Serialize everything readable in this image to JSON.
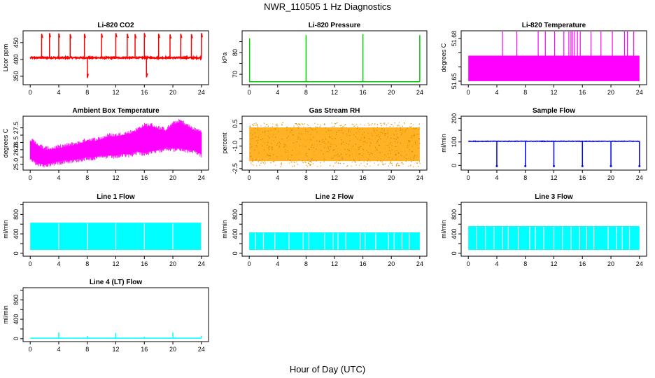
{
  "figure": {
    "title": "NWR_110505  1 Hz Diagnostics",
    "xlabel": "Hour of Day (UTC)"
  },
  "chart_data": [
    {
      "type": "line",
      "title": "Li-820 CO2",
      "ylabel": "Licor ppm",
      "color": "#ff0000",
      "xlim": [
        -1,
        25
      ],
      "ylim": [
        325,
        485
      ],
      "xticks": [
        0,
        4,
        8,
        12,
        16,
        20,
        24
      ],
      "yticks": [
        350,
        400,
        450
      ],
      "style": "spiky",
      "base": 405,
      "noise": 4,
      "spikes": [
        [
          1.6,
          476
        ],
        [
          2.7,
          478
        ],
        [
          4.0,
          477
        ],
        [
          5.6,
          475
        ],
        [
          7.6,
          476
        ],
        [
          8.0,
          345
        ],
        [
          10.0,
          477
        ],
        [
          12.0,
          478
        ],
        [
          13.6,
          476
        ],
        [
          14.7,
          475
        ],
        [
          16.0,
          478
        ],
        [
          16.3,
          347
        ],
        [
          18.0,
          476
        ],
        [
          19.6,
          474
        ],
        [
          21.1,
          476
        ],
        [
          22.6,
          475
        ],
        [
          24.0,
          478
        ]
      ],
      "series": [
        {
          "x": [
            0,
            4,
            8,
            12,
            16,
            20,
            24
          ],
          "y": [
            405,
            404,
            406,
            405,
            405,
            406,
            404
          ]
        }
      ]
    },
    {
      "type": "line",
      "title": "Li-820 Pressure",
      "ylabel": "kPa",
      "color": "#00cc00",
      "xlim": [
        -1,
        25
      ],
      "ylim": [
        65.2,
        90
      ],
      "xticks": [
        0,
        4,
        8,
        12,
        16,
        20,
        24
      ],
      "yticks": [
        70,
        75,
        80,
        85
      ],
      "ytick_labels": [
        "70",
        "",
        "80",
        ""
      ],
      "style": "step-spikes",
      "base": 66.6,
      "spikes": [
        [
          0.05,
          86.5
        ],
        [
          8.0,
          88.0
        ],
        [
          16.0,
          88.5
        ],
        [
          24.0,
          88.0
        ]
      ],
      "series": [
        {
          "x": [
            0,
            8,
            16,
            24
          ],
          "y": [
            66.6,
            66.7,
            66.6,
            66.6
          ]
        }
      ]
    },
    {
      "type": "area",
      "title": "Li-820 Temperature",
      "ylabel": "degrees C",
      "color": "#ff00ff",
      "xlim": [
        -1,
        25
      ],
      "ylim": [
        51.6475,
        51.6855
      ],
      "xticks": [
        0,
        4,
        8,
        12,
        16,
        20,
        24
      ],
      "yticks": [
        51.65,
        51.66,
        51.67,
        51.68
      ],
      "ytick_labels": [
        "51.65",
        "",
        "",
        "51.68"
      ],
      "style": "band",
      "band": [
        51.65,
        51.668
      ],
      "band_x": [
        0,
        24
      ],
      "spikes": [
        [
          4.8,
          51.685
        ],
        [
          6.8,
          51.685
        ],
        [
          9.8,
          51.685
        ],
        [
          10.8,
          51.685
        ],
        [
          12.1,
          51.685
        ],
        [
          13.4,
          51.685
        ],
        [
          14.1,
          51.685
        ],
        [
          14.4,
          51.685
        ],
        [
          14.6,
          51.685
        ],
        [
          14.9,
          51.685
        ],
        [
          15.3,
          51.685
        ],
        [
          15.7,
          51.685
        ],
        [
          17.2,
          51.685
        ],
        [
          18.6,
          51.685
        ],
        [
          20.2,
          51.685
        ],
        [
          21.9,
          51.685
        ],
        [
          22.3,
          51.685
        ],
        [
          23.2,
          51.685
        ]
      ],
      "series": [
        {
          "x": [
            0,
            24
          ],
          "y": [
            51.668,
            51.668
          ]
        }
      ]
    },
    {
      "type": "area",
      "title": "Ambient Box Temperature",
      "ylabel": "degrees C",
      "color": "#ff00ff",
      "xlim": [
        -1,
        25
      ],
      "ylim": [
        24.6,
        28.3
      ],
      "xticks": [
        0,
        4,
        8,
        12,
        16,
        20,
        24
      ],
      "yticks": [
        25.0,
        25.5,
        26.0,
        26.5,
        27.0,
        27.5
      ],
      "ytick_labels": [
        "25.0",
        "",
        "26.0",
        "26.5",
        "",
        "27.5"
      ],
      "style": "envelope",
      "series": [
        {
          "name": "",
          "x": [
            0,
            1,
            2,
            3,
            4,
            5,
            6,
            7,
            8,
            9,
            10,
            11,
            12,
            13,
            14,
            15,
            16,
            17,
            18,
            19,
            20,
            21,
            22,
            23,
            24
          ],
          "y": [
            26.6,
            26.3,
            26.0,
            26.0,
            26.1,
            26.2,
            26.3,
            26.4,
            26.6,
            26.6,
            26.7,
            26.9,
            26.9,
            27.0,
            27.1,
            27.3,
            27.6,
            27.6,
            27.4,
            27.3,
            27.7,
            27.9,
            27.6,
            27.3,
            27.2
          ]
        },
        {
          "name": "",
          "x": [
            0,
            1,
            2,
            3,
            4,
            5,
            6,
            7,
            8,
            9,
            10,
            11,
            12,
            13,
            14,
            15,
            16,
            17,
            18,
            19,
            20,
            21,
            22,
            23,
            24
          ],
          "y": [
            25.4,
            25.1,
            25.0,
            25.1,
            25.2,
            25.3,
            25.3,
            25.4,
            25.5,
            25.5,
            25.6,
            25.6,
            25.6,
            25.7,
            25.7,
            25.9,
            25.8,
            25.9,
            26.0,
            26.2,
            26.1,
            26.1,
            26.0,
            26.0,
            25.7
          ]
        }
      ]
    },
    {
      "type": "scatter",
      "title": "Gas Stream RH",
      "ylabel": "percent",
      "color": "#ffa500",
      "color2": "#cc8800",
      "xlim": [
        -1,
        25
      ],
      "ylim": [
        -2.6,
        1.0
      ],
      "xticks": [
        0,
        4,
        8,
        12,
        16,
        20,
        24
      ],
      "yticks": [
        -2.5,
        -2.0,
        -1.5,
        -1.0,
        -0.5,
        0.0,
        0.5
      ],
      "ytick_labels": [
        "-2.5",
        "",
        "",
        "-1.0",
        "",
        "",
        "0.5"
      ],
      "style": "noise-band",
      "band": [
        -2.0,
        0.25
      ],
      "series": [
        {
          "x": [
            0,
            24
          ],
          "y": [
            -0.9,
            -0.9
          ]
        }
      ]
    },
    {
      "type": "line",
      "title": "Sample Flow",
      "ylabel": "ml/min",
      "color": "#0000ff",
      "xlim": [
        -1,
        25
      ],
      "ylim": [
        -20,
        210
      ],
      "xticks": [
        0,
        4,
        8,
        12,
        16,
        20,
        24
      ],
      "yticks": [
        0,
        50,
        100,
        150,
        200
      ],
      "ytick_labels": [
        "0",
        "",
        "100",
        "",
        "200"
      ],
      "style": "dips",
      "base": 103,
      "noise": 2,
      "dips": [
        [
          4.0,
          -3
        ],
        [
          8.0,
          -3
        ],
        [
          12.0,
          -3
        ],
        [
          16.0,
          -3
        ],
        [
          20.0,
          -3
        ],
        [
          24.0,
          -3
        ]
      ],
      "series": [
        {
          "x": [
            0,
            4,
            8,
            12,
            16,
            20,
            24
          ],
          "y": [
            103,
            103,
            102,
            103,
            103,
            102,
            103
          ]
        }
      ]
    },
    {
      "type": "area",
      "title": "Line 1 Flow",
      "ylabel": "ml/min",
      "color": "#00ffff",
      "xlim": [
        -1,
        25
      ],
      "ylim": [
        -60,
        1050
      ],
      "xticks": [
        0,
        4,
        8,
        12,
        16,
        20,
        24
      ],
      "yticks": [
        0,
        200,
        400,
        600,
        800,
        1000
      ],
      "ytick_labels": [
        "0",
        "",
        "400",
        "",
        "800",
        ""
      ],
      "style": "band",
      "band": [
        70,
        630
      ],
      "band_x": [
        0,
        24
      ],
      "gaps": [
        4.0,
        8.0,
        12.0,
        16.0,
        20.0,
        24.0
      ],
      "series": [
        {
          "x": [
            0,
            24
          ],
          "y": [
            630,
            630
          ]
        }
      ]
    },
    {
      "type": "area",
      "title": "Line 2 Flow",
      "ylabel": "ml/min",
      "color": "#00ffff",
      "xlim": [
        -1,
        25
      ],
      "ylim": [
        -60,
        1050
      ],
      "xticks": [
        0,
        4,
        8,
        12,
        16,
        20,
        24
      ],
      "yticks": [
        0,
        200,
        400,
        600,
        800,
        1000
      ],
      "ytick_labels": [
        "0",
        "",
        "400",
        "",
        "800",
        ""
      ],
      "style": "band",
      "band": [
        70,
        430
      ],
      "band_x": [
        0,
        24
      ],
      "gaps": [
        0.9,
        2.0,
        3.6,
        5.6,
        7.6,
        8.4,
        10.6,
        11.8,
        12.5,
        13.6,
        15.6,
        16.3,
        17.8,
        19.6,
        20.4,
        21.5,
        22.5
      ],
      "series": [
        {
          "x": [
            0,
            24
          ],
          "y": [
            430,
            430
          ]
        }
      ]
    },
    {
      "type": "area",
      "title": "Line 3 Flow",
      "ylabel": "ml/min",
      "color": "#00ffff",
      "xlim": [
        -1,
        25
      ],
      "ylim": [
        -60,
        1050
      ],
      "xticks": [
        0,
        4,
        8,
        12,
        16,
        20,
        24
      ],
      "yticks": [
        0,
        200,
        400,
        600,
        800,
        1000
      ],
      "ytick_labels": [
        "0",
        "",
        "400",
        "",
        "800",
        ""
      ],
      "style": "band",
      "band": [
        70,
        560
      ],
      "band_x": [
        0,
        24
      ],
      "gaps": [
        1.2,
        2.4,
        3.6,
        4.8,
        5.6,
        7.0,
        8.6,
        9.4,
        10.6,
        12.0,
        13.2,
        14.4,
        15.6,
        16.6,
        17.6,
        19.6,
        20.8,
        21.6,
        22.6
      ],
      "series": [
        {
          "x": [
            0,
            24
          ],
          "y": [
            560,
            560
          ]
        }
      ]
    },
    {
      "type": "line",
      "title": "Line 4 (LT) Flow",
      "ylabel": "ml/min",
      "color": "#00ffff",
      "xlim": [
        -1,
        25
      ],
      "ylim": [
        -60,
        1050
      ],
      "xticks": [
        0,
        4,
        8,
        12,
        16,
        20,
        24
      ],
      "yticks": [
        0,
        200,
        400,
        600,
        800,
        1000
      ],
      "ytick_labels": [
        "0",
        "",
        "400",
        "",
        "800",
        ""
      ],
      "style": "flat-spikes",
      "base": 10,
      "spikes": [
        [
          4.0,
          130
        ],
        [
          8.0,
          55
        ],
        [
          12.0,
          120
        ],
        [
          16.0,
          40
        ],
        [
          20.0,
          125
        ],
        [
          24.0,
          60
        ]
      ],
      "series": [
        {
          "x": [
            0,
            24
          ],
          "y": [
            10,
            10
          ]
        }
      ]
    }
  ]
}
